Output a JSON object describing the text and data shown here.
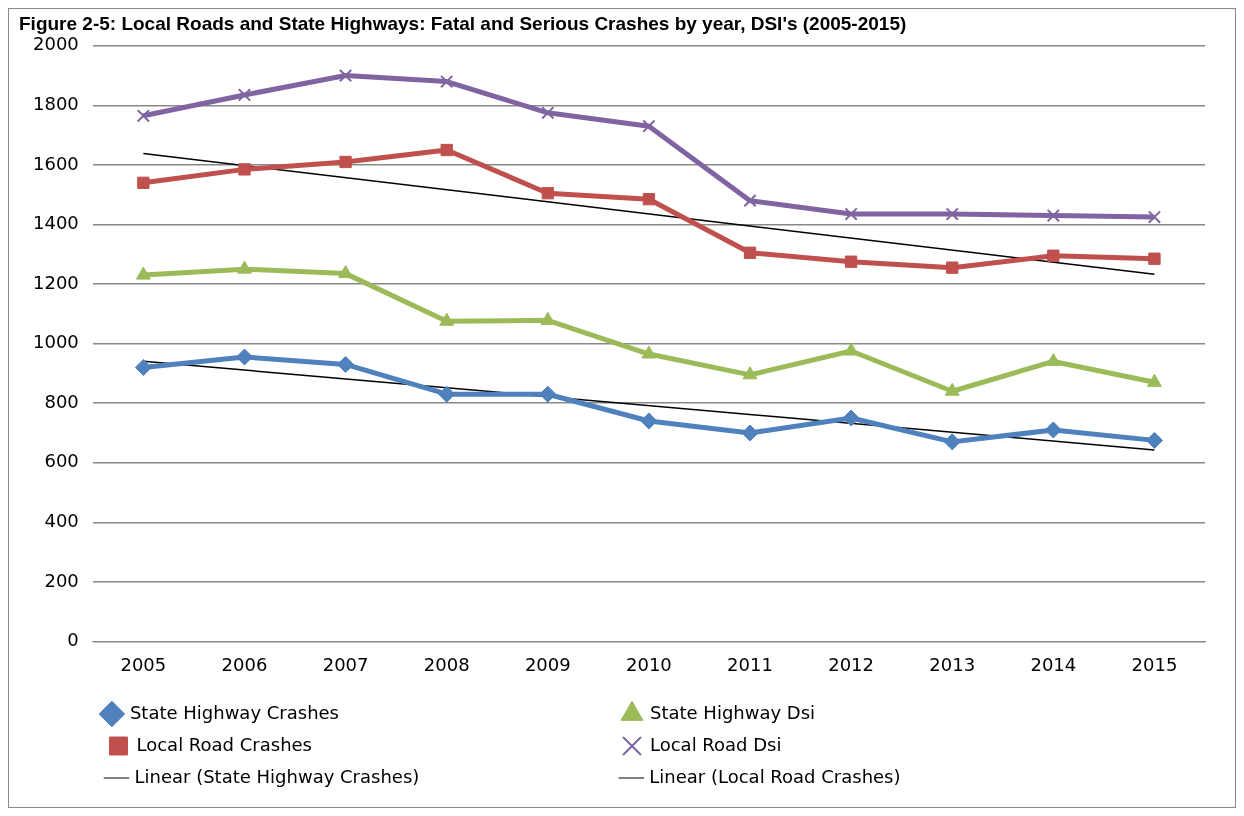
{
  "chart_data": {
    "type": "line",
    "title": "Figure 2-5: Local Roads and State Highways: Fatal and Serious Crashes by year, DSI's (2005-2015)",
    "categories": [
      "2005",
      "2006",
      "2007",
      "2008",
      "2009",
      "2010",
      "2011",
      "2012",
      "2013",
      "2014",
      "2015"
    ],
    "ylim": [
      0,
      2000
    ],
    "yticks": [
      0,
      200,
      400,
      600,
      800,
      1000,
      1200,
      1400,
      1600,
      1800,
      2000
    ],
    "grid": "y",
    "legend": "bottom",
    "line_style": "solid",
    "series": [
      {
        "name": "State Highway Crashes",
        "color": "#4f81bd",
        "marker": "diamond",
        "values": [
          920,
          955,
          930,
          830,
          830,
          740,
          700,
          750,
          670,
          710,
          675
        ]
      },
      {
        "name": "State Highway Dsi",
        "color": "#9bbb59",
        "marker": "triangle",
        "values": [
          1230,
          1250,
          1235,
          1075,
          1078,
          965,
          895,
          975,
          840,
          940,
          870
        ]
      },
      {
        "name": "Local Road Crashes",
        "color": "#c0504d",
        "marker": "square",
        "values": [
          1540,
          1585,
          1610,
          1650,
          1505,
          1485,
          1305,
          1275,
          1255,
          1295,
          1285
        ]
      },
      {
        "name": "Local Road Dsi",
        "color": "#8064a2",
        "marker": "cross",
        "values": [
          1765,
          1835,
          1900,
          1880,
          1775,
          1730,
          1480,
          1435,
          1435,
          1430,
          1425
        ]
      },
      {
        "name": "Linear (State Highway Crashes)",
        "color": "#000000",
        "marker": "none",
        "values": [
          941,
          null,
          null,
          null,
          null,
          null,
          null,
          null,
          null,
          null,
          643
        ]
      },
      {
        "name": "Linear (Local Road Crashes)",
        "color": "#000000",
        "marker": "none",
        "values": [
          1638,
          null,
          null,
          null,
          null,
          null,
          null,
          null,
          null,
          null,
          1233
        ]
      }
    ]
  }
}
